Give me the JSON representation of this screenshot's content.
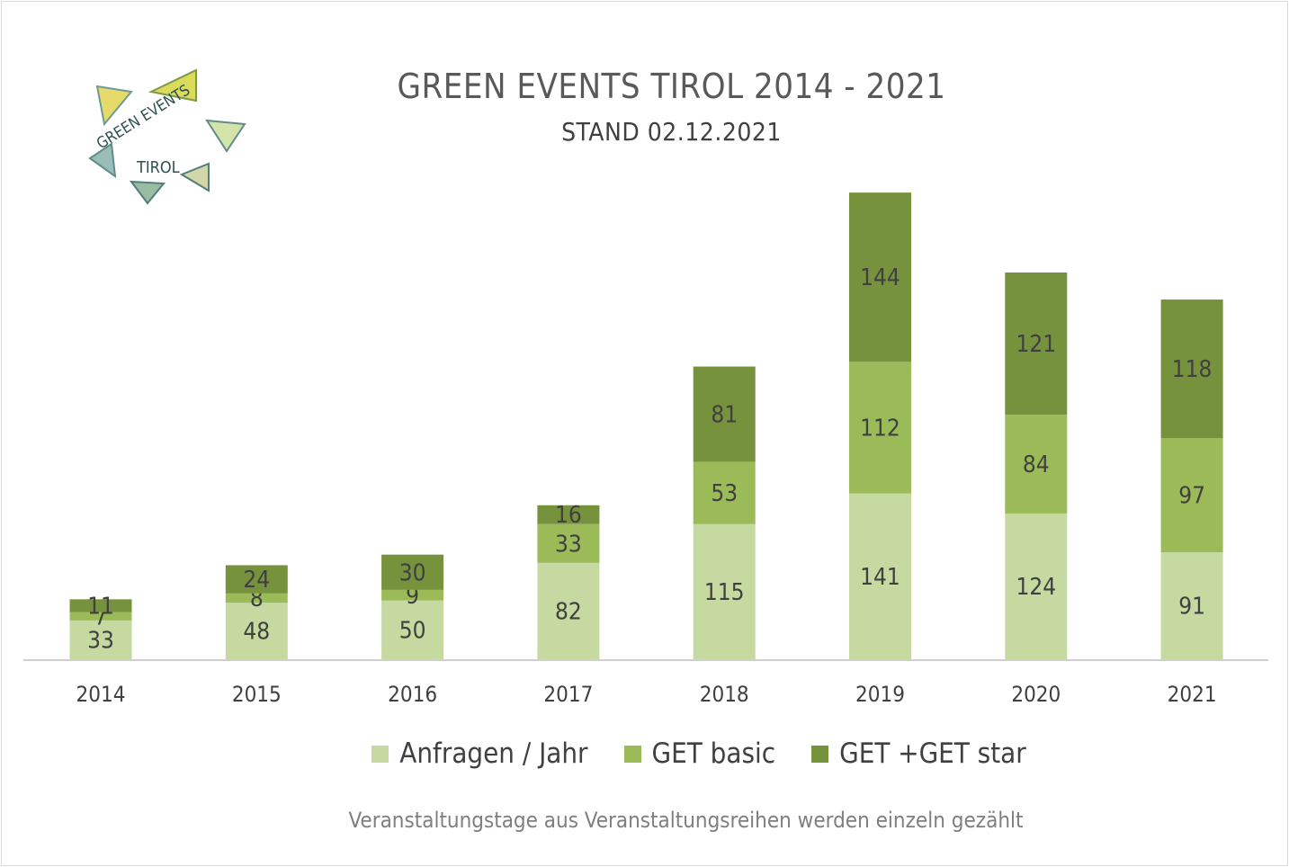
{
  "chart_data": {
    "type": "bar",
    "stacked": true,
    "title": "GREEN EVENTS TIROL 2014 - 2021",
    "subtitle": "STAND 02.12.2021",
    "categories": [
      "2014",
      "2015",
      "2016",
      "2017",
      "2018",
      "2019",
      "2020",
      "2021"
    ],
    "series": [
      {
        "name": "Anfragen / Jahr",
        "color": "#c5d9a0",
        "values": [
          33,
          48,
          50,
          82,
          115,
          141,
          124,
          91
        ]
      },
      {
        "name": "GET basic",
        "color": "#9bbb59",
        "values": [
          7,
          8,
          9,
          33,
          53,
          112,
          84,
          97
        ]
      },
      {
        "name": "GET +GET star",
        "color": "#76923c",
        "values": [
          11,
          24,
          30,
          16,
          81,
          144,
          121,
          118
        ]
      }
    ],
    "legend_position": "bottom",
    "grid": false,
    "footnote": "Veranstaltungstage aus Veranstaltungsreihen werden einzeln gezählt"
  },
  "logo": {
    "text_line1": "GREEN EVENTS",
    "text_line2": "TIROL"
  }
}
